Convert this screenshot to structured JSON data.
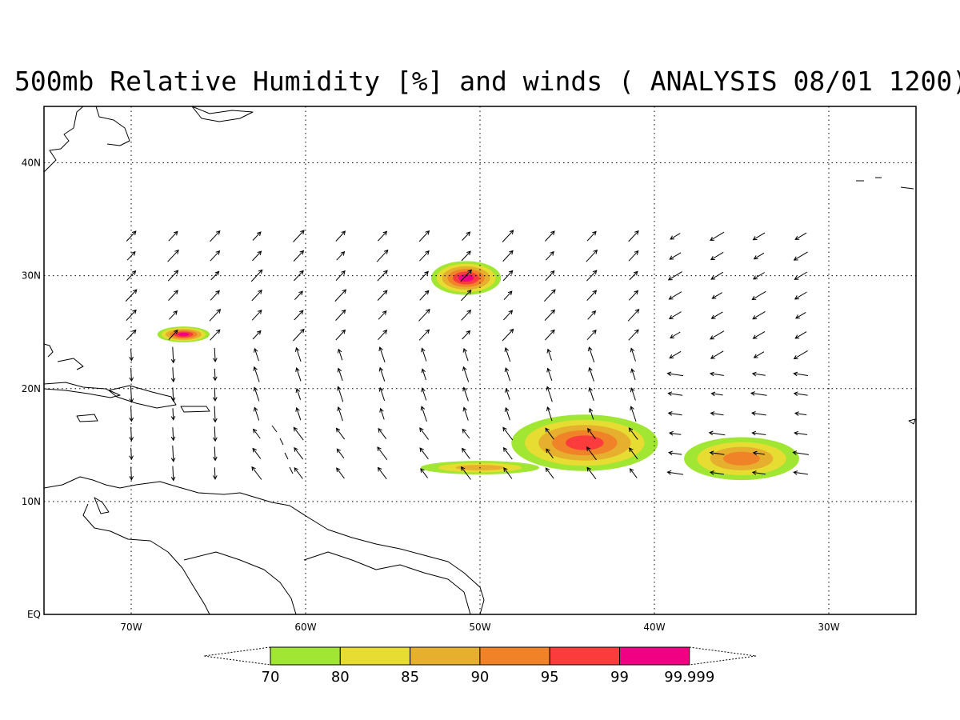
{
  "title": "500mb Relative Humidity [%] and winds ( ANALYSIS 08/01 1200)",
  "map": {
    "lon_range": [
      -75,
      -25
    ],
    "lat_range": [
      0,
      45
    ],
    "lon_ticks": [
      {
        "lon": -70,
        "label": "70W"
      },
      {
        "lon": -60,
        "label": "60W"
      },
      {
        "lon": -50,
        "label": "50W"
      },
      {
        "lon": -40,
        "label": "40W"
      },
      {
        "lon": -30,
        "label": "30W"
      }
    ],
    "lat_ticks": [
      {
        "lat": 0,
        "label": "EQ"
      },
      {
        "lat": 10,
        "label": "10N"
      },
      {
        "lat": 20,
        "label": "20N"
      },
      {
        "lat": 30,
        "label": "30N"
      },
      {
        "lat": 40,
        "label": "40N"
      }
    ],
    "grid": "dotted"
  },
  "legend": {
    "levels": [
      "70",
      "80",
      "85",
      "90",
      "95",
      "99",
      "99.999"
    ],
    "colors": [
      "#a0e632",
      "#e6dc32",
      "#e6af2d",
      "#f08228",
      "#fa3c3c",
      "#f00082"
    ]
  },
  "humidity_areas": [
    {
      "lon": -44,
      "lat": 15.2,
      "rx_deg": 4.2,
      "ry_deg": 2.5,
      "max_level": 95
    },
    {
      "lon": -35,
      "lat": 13.8,
      "rx_deg": 3.3,
      "ry_deg": 1.9,
      "max_level": 90
    },
    {
      "lon": -50.8,
      "lat": 29.8,
      "rx_deg": 2.0,
      "ry_deg": 1.5,
      "max_level": 99
    },
    {
      "lon": -67,
      "lat": 24.8,
      "rx_deg": 1.5,
      "ry_deg": 0.7,
      "max_level": 99
    },
    {
      "lon": -50,
      "lat": 13.0,
      "rx_deg": 3.4,
      "ry_deg": 0.6,
      "max_level": 85
    }
  ]
}
